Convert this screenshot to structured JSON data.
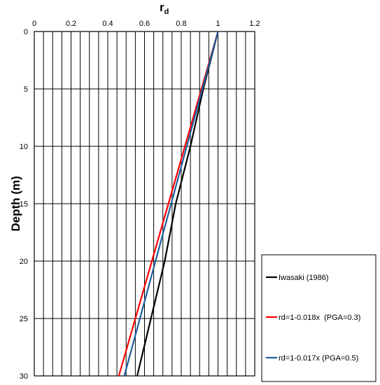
{
  "chart_data": {
    "type": "line",
    "title": "",
    "xlabel": "r",
    "xlabel_sub": "d",
    "ylabel": "Depth (m)",
    "xlim": [
      0,
      1.2
    ],
    "ylim": [
      0,
      30
    ],
    "y_inverted": true,
    "x_axis_position": "top",
    "x_ticks": [
      "0",
      "0.2",
      "0.4",
      "0.6",
      "0.8",
      "1",
      "1.2"
    ],
    "y_ticks": [
      "0",
      "5",
      "10",
      "15",
      "20",
      "25",
      "30"
    ],
    "grid": true,
    "legend_position": "right-bottom, outside plot",
    "series": [
      {
        "name": "Iwasaki (1986)",
        "color": "#000000",
        "points": [
          [
            1.0,
            0
          ],
          [
            0.92,
            5
          ],
          [
            0.85,
            10
          ],
          [
            0.77,
            15
          ],
          [
            0.71,
            20
          ],
          [
            0.635,
            25
          ],
          [
            0.56,
            30
          ]
        ]
      },
      {
        "name": "rd=1-0.018x  (PGA=0.3)",
        "color": "#ff0000",
        "points": [
          [
            1.0,
            0
          ],
          [
            0.46,
            30
          ]
        ]
      },
      {
        "name": "rd=1-0.017x (PGA=0.5)",
        "color": "#1f5f9e",
        "points": [
          [
            1.0,
            0
          ],
          [
            0.49,
            30
          ]
        ]
      }
    ]
  }
}
